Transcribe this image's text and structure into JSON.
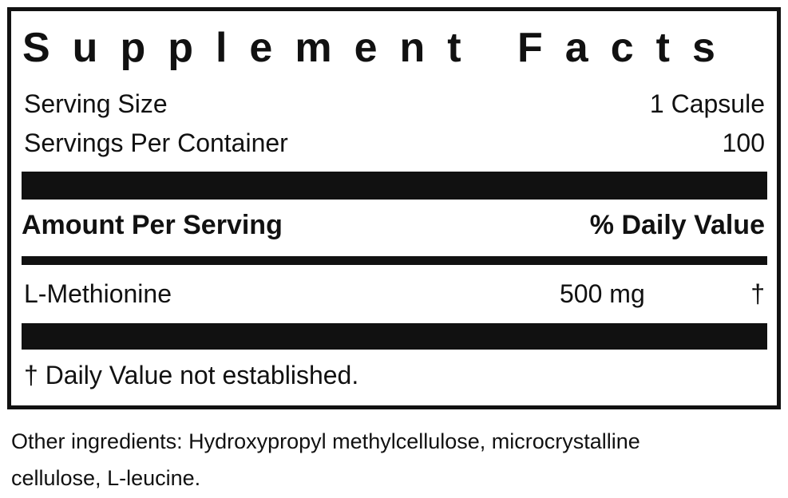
{
  "title": "Supplement Facts",
  "serving_size": {
    "label": "Serving Size",
    "value": "1 Capsule"
  },
  "servings_per_container": {
    "label": "Servings Per Container",
    "value": "100"
  },
  "header": {
    "amount": "Amount Per Serving",
    "daily_value": "% Daily Value"
  },
  "nutrients": [
    {
      "name": "L-Methionine",
      "amount": "500 mg",
      "dv": "†"
    }
  ],
  "footnote": "† Daily Value not established.",
  "other_ingredients": [
    "Other ingredients: Hydroxypropyl methylcellulose, microcrystalline",
    "cellulose, L-leucine."
  ]
}
